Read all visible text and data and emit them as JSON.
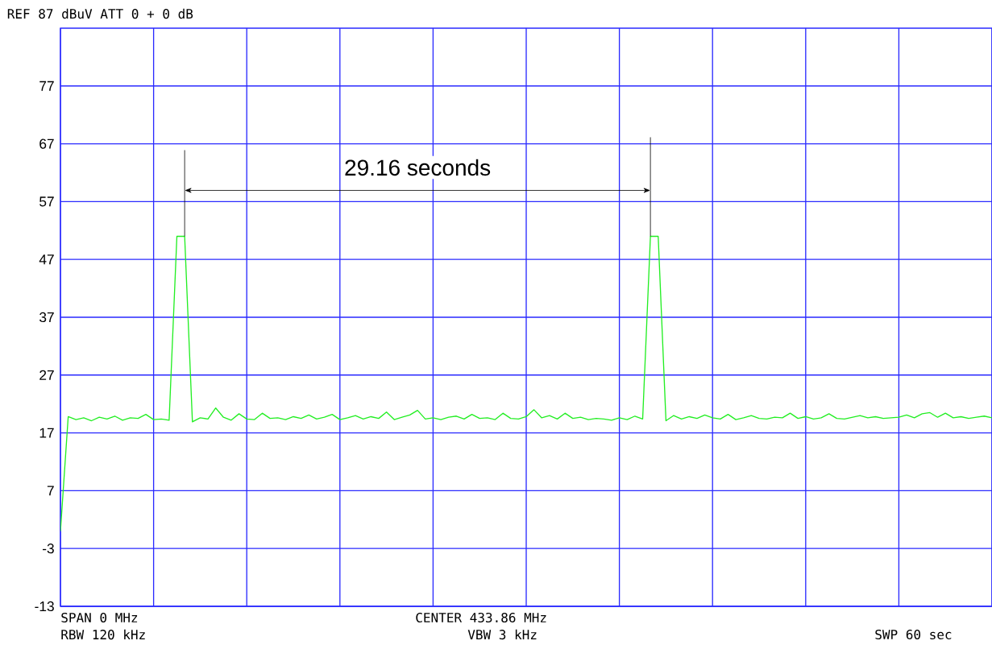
{
  "chart_data": {
    "type": "line",
    "title": "REF  87  dBuV    ATT  0 + 0  dB",
    "annotations": [
      "29.16 seconds",
      "SPAN 0 MHz",
      "RBW 120 kHz",
      "CENTER 433.86 MHz",
      "VBW 3 kHz",
      "SWP 60 sec"
    ],
    "categories": [
      null,
      null,
      null,
      null,
      null,
      null,
      null,
      null,
      null,
      null,
      null,
      null,
      null,
      null,
      null,
      null,
      null,
      null,
      null,
      null,
      null,
      null,
      null,
      null,
      null,
      null,
      null,
      null,
      null,
      null,
      null,
      null,
      null,
      null,
      null,
      null,
      null,
      null,
      null,
      null,
      null,
      null,
      null,
      null,
      null,
      null,
      null,
      null,
      null,
      null,
      null,
      null,
      null,
      null,
      null,
      null,
      null,
      null,
      null,
      null,
      null,
      null,
      null,
      null,
      null,
      null,
      null,
      null,
      null,
      null,
      null,
      null,
      null,
      null,
      null,
      null,
      null,
      null,
      null,
      null,
      null,
      null,
      null,
      null,
      null,
      null,
      null,
      null,
      null,
      null,
      null,
      null,
      null,
      null,
      null,
      null,
      null,
      null,
      null,
      null,
      null,
      null,
      null,
      null,
      null,
      null,
      null,
      null,
      null,
      null,
      null,
      null,
      null,
      null,
      null,
      null,
      null,
      null,
      null,
      null,
      null
    ],
    "values": [
      0,
      19.8,
      19.3,
      19.6,
      19.1,
      19.7,
      19.4,
      19.9,
      19.2,
      19.6,
      19.5,
      20.2,
      19.3,
      19.4,
      19.2,
      51,
      51,
      18.9,
      19.6,
      19.4,
      21.3,
      19.7,
      19.2,
      20.3,
      19.4,
      19.3,
      20.4,
      19.5,
      19.6,
      19.3,
      19.8,
      19.5,
      20.1,
      19.4,
      19.7,
      20.2,
      19.3,
      19.6,
      20.0,
      19.4,
      19.8,
      19.5,
      20.6,
      19.3,
      19.7,
      20.1,
      20.9,
      19.4,
      19.6,
      19.3,
      19.7,
      19.9,
      19.4,
      20.2,
      19.5,
      19.6,
      19.3,
      20.4,
      19.5,
      19.4,
      19.8,
      21.0,
      19.6,
      20.0,
      19.4,
      20.4,
      19.5,
      19.7,
      19.3,
      19.5,
      19.4,
      19.2,
      19.6,
      19.3,
      19.9,
      19.4,
      51,
      51,
      19.1,
      20.0,
      19.4,
      19.8,
      19.5,
      20.1,
      19.6,
      19.4,
      20.2,
      19.3,
      19.6,
      20.0,
      19.5,
      19.4,
      19.7,
      19.6,
      20.4,
      19.5,
      19.8,
      19.4,
      19.6,
      20.3,
      19.5,
      19.4,
      19.7,
      20.0,
      19.6,
      19.8,
      19.5,
      19.6,
      19.7,
      20.1,
      19.6,
      20.3,
      20.5,
      19.7,
      20.4,
      19.6,
      19.8,
      19.5,
      19.7,
      19.9,
      19.6
    ],
    "color": "#22ee22",
    "ylim": [
      -13,
      87
    ],
    "yticks": [
      -13,
      -3,
      7,
      17,
      27,
      37,
      47,
      57,
      67,
      77
    ],
    "grid": true,
    "tick_labels": "y"
  }
}
